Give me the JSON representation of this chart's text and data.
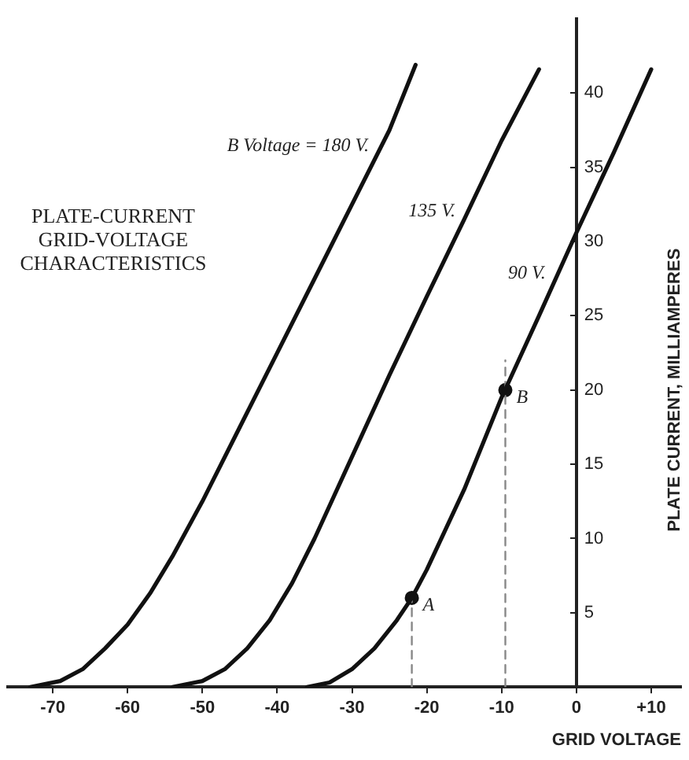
{
  "chart_data": {
    "type": "line",
    "title": "PLATE-CURRENT\nGRID-VOLTAGE\nCHARACTERISTICS",
    "xlabel": "GRID VOLTAGE",
    "ylabel": "PLATE CURRENT, MILLIAMPERES",
    "xlim": [
      -76,
      14
    ],
    "xticks": [
      -70,
      -60,
      -50,
      -40,
      -30,
      -20,
      -10,
      0,
      {
        "value": 10,
        "label": "+10"
      }
    ],
    "ylim": [
      0,
      45
    ],
    "yticks": [
      5,
      10,
      15,
      20,
      25,
      30,
      35,
      40
    ],
    "grid": false,
    "legend": false,
    "marker": "none",
    "line_style": "solid",
    "series": [
      {
        "name": "B Voltage = 180 V.",
        "color": "#111111",
        "x": [
          -73,
          -69,
          -66,
          -63,
          -60,
          -57,
          -54,
          -50,
          -45,
          -40,
          -35,
          -30,
          -25,
          -21.5
        ],
        "values": [
          0,
          0.4,
          1.2,
          2.6,
          4.2,
          6.3,
          8.8,
          12.5,
          17.5,
          22.5,
          27.5,
          32.5,
          37.5,
          41.9
        ]
      },
      {
        "name": "135 V.",
        "color": "#111111",
        "x": [
          -54,
          -50,
          -47,
          -44,
          -41,
          -38,
          -35,
          -30,
          -25,
          -20,
          -15,
          -10,
          -5
        ],
        "values": [
          0,
          0.4,
          1.2,
          2.6,
          4.5,
          7,
          10,
          15.5,
          21,
          26.3,
          31.5,
          36.8,
          41.6
        ]
      },
      {
        "name": "90 V.",
        "color": "#111111",
        "x": [
          -36,
          -33,
          -30,
          -27,
          -24,
          -22,
          -20,
          -15,
          -10,
          -5,
          0,
          5,
          10
        ],
        "values": [
          0,
          0.3,
          1.2,
          2.6,
          4.5,
          6,
          7.9,
          13.3,
          19.5,
          25,
          30.6,
          36,
          41.6
        ]
      },
      {
        "line_style": "dashed",
        "color": "#888888",
        "x": [
          -22,
          -22
        ],
        "values": [
          0,
          6
        ]
      },
      {
        "line_style": "dashed",
        "color": "#888888",
        "x": [
          -9.5,
          -9.5
        ],
        "values": [
          0,
          22
        ]
      },
      {
        "type": "scatter",
        "marker": "circle",
        "color": "#111111",
        "x": [
          -22,
          -9.5
        ],
        "values": [
          6,
          20
        ]
      }
    ],
    "annotations": [
      {
        "text": "A",
        "x": -22,
        "y": 6
      },
      {
        "text": "B",
        "x": -9.5,
        "y": 20
      }
    ]
  }
}
